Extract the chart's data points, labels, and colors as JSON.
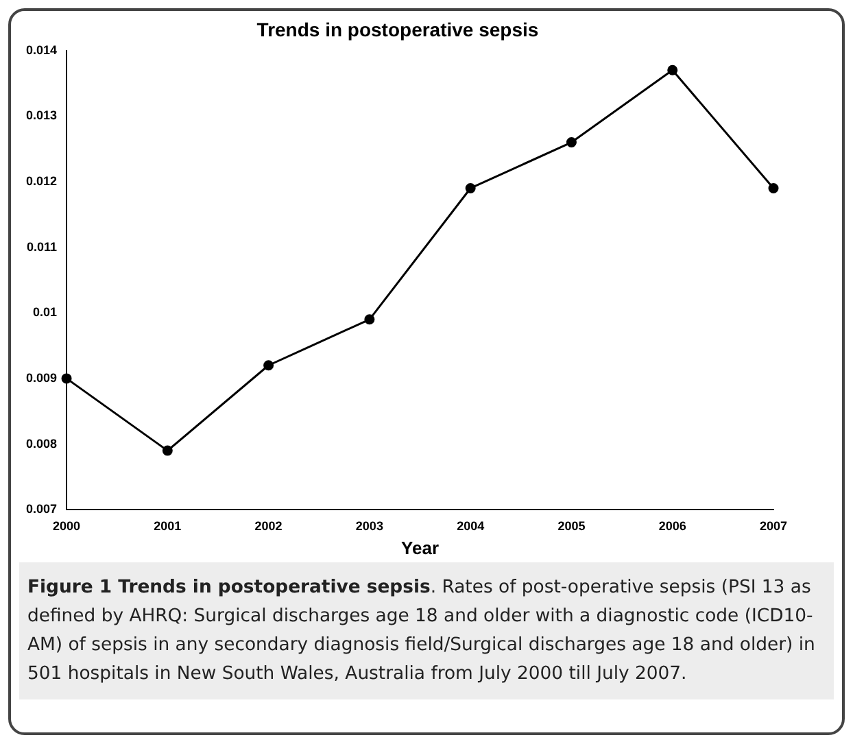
{
  "chart_data": {
    "type": "line",
    "title": "Trends in postoperative sepsis",
    "xlabel": "Year",
    "x": [
      2000,
      2001,
      2002,
      2003,
      2004,
      2005,
      2006,
      2007
    ],
    "series": [
      {
        "color": "#000000",
        "values": [
          0.009,
          0.0079,
          0.0092,
          0.0099,
          0.0119,
          0.0126,
          0.0137,
          0.0119
        ]
      }
    ],
    "xlim": [
      2000,
      2007
    ],
    "xticks": [
      2000,
      2001,
      2002,
      2003,
      2004,
      2005,
      2006,
      2007
    ],
    "ylim": [
      0.007,
      0.014
    ],
    "yticks": [
      0.007,
      0.008,
      0.009,
      0.01,
      0.011,
      0.012,
      0.013,
      0.014
    ],
    "grid": false,
    "legend": false,
    "marker": "circle",
    "line_style": "solid",
    "annotations": [
      "Figure 1 Trends in postoperative sepsis",
      ". Rates of post-operative sepsis (PSI 13 as defined by AHRQ: Surgical discharges age 18 and older with a diagnostic code (ICD10-AM) of sepsis in any secondary diagnosis field/Surgical discharges age 18 and older) in 501 hospitals in New South Wales, Australia from July 2000 till July 2007."
    ]
  }
}
